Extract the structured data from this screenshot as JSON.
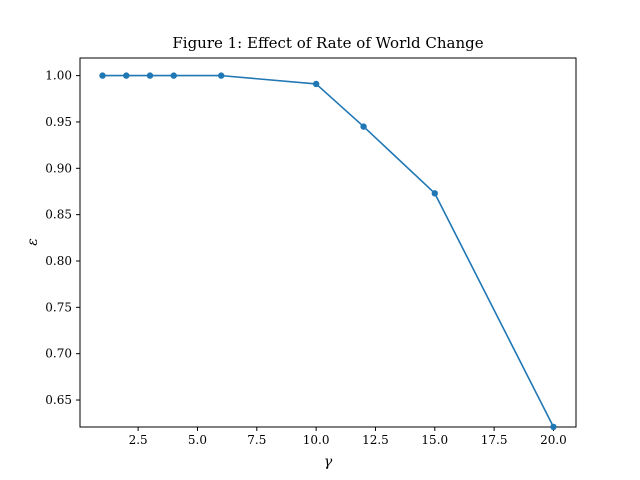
{
  "chart_data": {
    "type": "line",
    "title": "Figure 1: Effect of Rate of World Change",
    "xlabel": "γ",
    "ylabel": "ε",
    "xlim": [
      0.05,
      20.95
    ],
    "ylim": [
      0.6209,
      1.019
    ],
    "xticks": [
      2.5,
      5.0,
      7.5,
      10.0,
      12.5,
      15.0,
      17.5,
      20.0
    ],
    "xtick_labels": [
      "2.5",
      "5.0",
      "7.5",
      "10.0",
      "12.5",
      "15.0",
      "17.5",
      "20.0"
    ],
    "yticks": [
      0.65,
      0.7,
      0.75,
      0.8,
      0.85,
      0.9,
      0.95,
      1.0
    ],
    "ytick_labels": [
      "0.65",
      "0.70",
      "0.75",
      "0.80",
      "0.85",
      "0.90",
      "0.95",
      "1.00"
    ],
    "grid": false,
    "legend": "none",
    "series": [
      {
        "color": "#1f77b4",
        "marker": "circle",
        "x": [
          1,
          2,
          3,
          4,
          6,
          10,
          12,
          15,
          20
        ],
        "y": [
          1.0,
          1.0,
          1.0,
          1.0,
          1.0,
          0.991,
          0.945,
          0.873,
          0.621
        ]
      }
    ]
  }
}
